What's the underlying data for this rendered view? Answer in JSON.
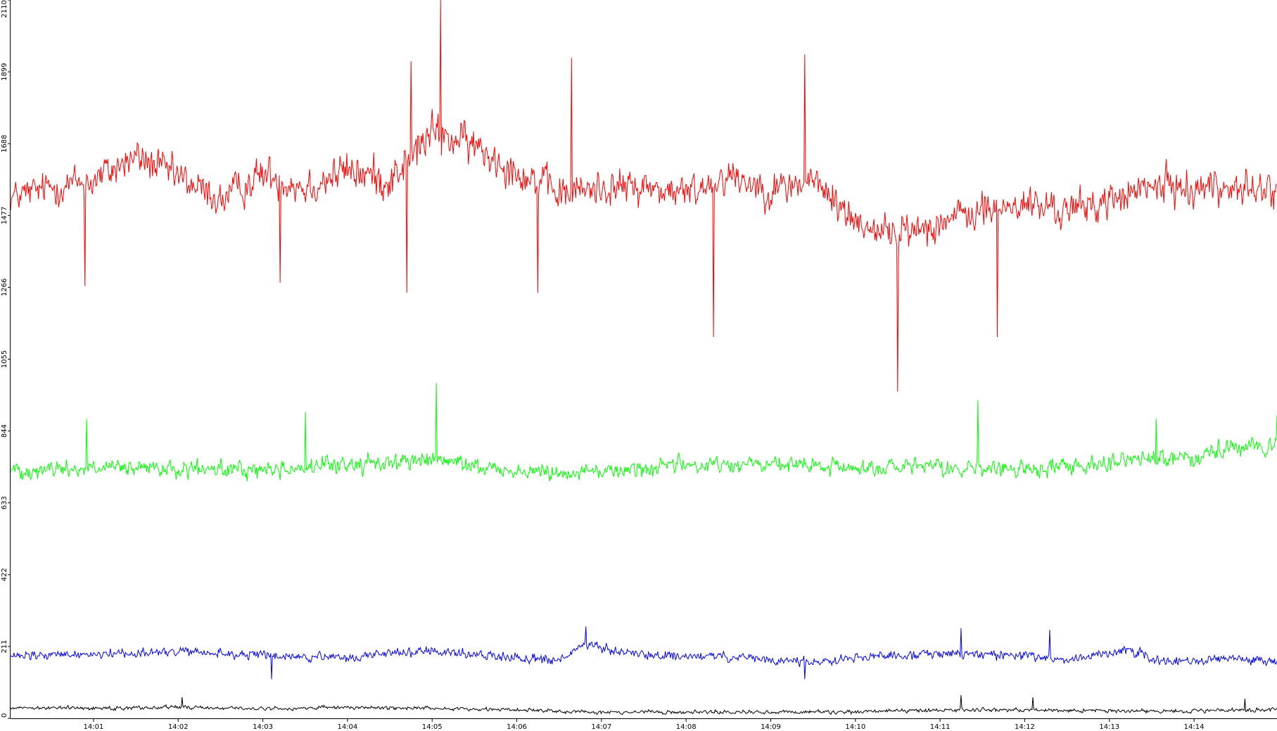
{
  "chart_data": {
    "type": "line",
    "title": "",
    "xlabel": "",
    "ylabel": "",
    "ylim": [
      0,
      2110
    ],
    "y_ticks": [
      "0",
      "211",
      "422",
      "633",
      "844",
      "1055",
      "1266",
      "1477",
      "1688",
      "1899",
      "2110"
    ],
    "x_tick_labels": [
      "14:01",
      "14:02",
      "14:03",
      "14:04",
      "14:05",
      "14:06",
      "14:07",
      "14:08",
      "14:09",
      "14:10",
      "14:11",
      "14:12",
      "14:13",
      "14:14"
    ],
    "x_range_minutes": [
      0.02,
      14.98
    ],
    "samples_per_series": 1500,
    "grid": false,
    "legend": "none",
    "series": [
      {
        "color": "#ff0000",
        "envelope": [
          {
            "t": 0.02,
            "mean": 1530,
            "spread": 95
          },
          {
            "t": 0.5,
            "mean": 1560,
            "spread": 110
          },
          {
            "t": 1.0,
            "mean": 1580,
            "spread": 115
          },
          {
            "t": 1.5,
            "mean": 1650,
            "spread": 120
          },
          {
            "t": 2.0,
            "mean": 1590,
            "spread": 115
          },
          {
            "t": 2.5,
            "mean": 1520,
            "spread": 110
          },
          {
            "t": 3.0,
            "mean": 1600,
            "spread": 120
          },
          {
            "t": 3.5,
            "mean": 1560,
            "spread": 120
          },
          {
            "t": 4.0,
            "mean": 1610,
            "spread": 125
          },
          {
            "t": 4.5,
            "mean": 1580,
            "spread": 130
          },
          {
            "t": 5.0,
            "mean": 1720,
            "spread": 130
          },
          {
            "t": 5.5,
            "mean": 1680,
            "spread": 120
          },
          {
            "t": 6.0,
            "mean": 1610,
            "spread": 115
          },
          {
            "t": 6.5,
            "mean": 1540,
            "spread": 115
          },
          {
            "t": 7.0,
            "mean": 1560,
            "spread": 110
          },
          {
            "t": 7.5,
            "mean": 1560,
            "spread": 110
          },
          {
            "t": 8.0,
            "mean": 1540,
            "spread": 110
          },
          {
            "t": 8.5,
            "mean": 1600,
            "spread": 110
          },
          {
            "t": 9.0,
            "mean": 1550,
            "spread": 110
          },
          {
            "t": 9.5,
            "mean": 1580,
            "spread": 115
          },
          {
            "t": 10.0,
            "mean": 1460,
            "spread": 110
          },
          {
            "t": 10.5,
            "mean": 1420,
            "spread": 115
          },
          {
            "t": 11.0,
            "mean": 1460,
            "spread": 110
          },
          {
            "t": 11.5,
            "mean": 1490,
            "spread": 110
          },
          {
            "t": 12.0,
            "mean": 1510,
            "spread": 110
          },
          {
            "t": 12.5,
            "mean": 1490,
            "spread": 110
          },
          {
            "t": 13.0,
            "mean": 1520,
            "spread": 110
          },
          {
            "t": 13.5,
            "mean": 1560,
            "spread": 115
          },
          {
            "t": 14.0,
            "mean": 1560,
            "spread": 115
          },
          {
            "t": 14.5,
            "mean": 1560,
            "spread": 115
          },
          {
            "t": 14.98,
            "mean": 1540,
            "spread": 110
          }
        ],
        "spikes": [
          {
            "t": 5.1,
            "value": 2110
          },
          {
            "t": 9.4,
            "value": 1950
          },
          {
            "t": 4.75,
            "value": 1930
          },
          {
            "t": 6.65,
            "value": 1940
          },
          {
            "t": 10.5,
            "value": 960
          },
          {
            "t": 8.32,
            "value": 1120
          },
          {
            "t": 11.68,
            "value": 1120
          },
          {
            "t": 0.9,
            "value": 1270
          },
          {
            "t": 6.25,
            "value": 1250
          },
          {
            "t": 4.7,
            "value": 1250
          },
          {
            "t": 3.2,
            "value": 1280
          }
        ]
      },
      {
        "color": "#00ff00",
        "envelope": [
          {
            "t": 0.02,
            "mean": 730,
            "spread": 55
          },
          {
            "t": 1.0,
            "mean": 735,
            "spread": 55
          },
          {
            "t": 2.0,
            "mean": 730,
            "spread": 55
          },
          {
            "t": 3.0,
            "mean": 730,
            "spread": 55
          },
          {
            "t": 4.0,
            "mean": 745,
            "spread": 55
          },
          {
            "t": 5.0,
            "mean": 760,
            "spread": 55
          },
          {
            "t": 6.0,
            "mean": 725,
            "spread": 50
          },
          {
            "t": 7.0,
            "mean": 725,
            "spread": 50
          },
          {
            "t": 8.0,
            "mean": 745,
            "spread": 55
          },
          {
            "t": 9.0,
            "mean": 745,
            "spread": 55
          },
          {
            "t": 10.0,
            "mean": 735,
            "spread": 55
          },
          {
            "t": 11.0,
            "mean": 735,
            "spread": 55
          },
          {
            "t": 12.0,
            "mean": 730,
            "spread": 55
          },
          {
            "t": 13.0,
            "mean": 755,
            "spread": 55
          },
          {
            "t": 14.0,
            "mean": 770,
            "spread": 55
          },
          {
            "t": 14.98,
            "mean": 810,
            "spread": 55
          }
        ],
        "spikes": [
          {
            "t": 5.05,
            "value": 985
          },
          {
            "t": 11.45,
            "value": 935
          },
          {
            "t": 0.92,
            "value": 880
          },
          {
            "t": 3.5,
            "value": 900
          },
          {
            "t": 13.55,
            "value": 880
          },
          {
            "t": 14.98,
            "value": 890
          }
        ]
      },
      {
        "color": "#0000ff",
        "envelope": [
          {
            "t": 0.02,
            "mean": 180,
            "spread": 30
          },
          {
            "t": 1.0,
            "mean": 190,
            "spread": 30
          },
          {
            "t": 2.0,
            "mean": 195,
            "spread": 30
          },
          {
            "t": 3.0,
            "mean": 185,
            "spread": 30
          },
          {
            "t": 4.0,
            "mean": 175,
            "spread": 30
          },
          {
            "t": 4.5,
            "mean": 195,
            "spread": 30
          },
          {
            "t": 5.0,
            "mean": 195,
            "spread": 30
          },
          {
            "t": 6.0,
            "mean": 180,
            "spread": 30
          },
          {
            "t": 6.5,
            "mean": 170,
            "spread": 30
          },
          {
            "t": 6.8,
            "mean": 215,
            "spread": 30
          },
          {
            "t": 7.5,
            "mean": 185,
            "spread": 30
          },
          {
            "t": 8.5,
            "mean": 180,
            "spread": 30
          },
          {
            "t": 9.0,
            "mean": 170,
            "spread": 30
          },
          {
            "t": 9.5,
            "mean": 165,
            "spread": 30
          },
          {
            "t": 10.0,
            "mean": 180,
            "spread": 30
          },
          {
            "t": 11.0,
            "mean": 190,
            "spread": 30
          },
          {
            "t": 12.0,
            "mean": 185,
            "spread": 30
          },
          {
            "t": 12.5,
            "mean": 170,
            "spread": 30
          },
          {
            "t": 13.2,
            "mean": 205,
            "spread": 30
          },
          {
            "t": 13.6,
            "mean": 165,
            "spread": 30
          },
          {
            "t": 14.5,
            "mean": 175,
            "spread": 30
          },
          {
            "t": 14.98,
            "mean": 165,
            "spread": 30
          }
        ],
        "spikes": [
          {
            "t": 6.82,
            "value": 270
          },
          {
            "t": 11.25,
            "value": 265
          },
          {
            "t": 12.3,
            "value": 260
          },
          {
            "t": 9.4,
            "value": 115
          },
          {
            "t": 3.1,
            "value": 115
          }
        ]
      },
      {
        "color": "#000000",
        "envelope": [
          {
            "t": 0.02,
            "mean": 32,
            "spread": 12
          },
          {
            "t": 1.0,
            "mean": 30,
            "spread": 12
          },
          {
            "t": 2.0,
            "mean": 33,
            "spread": 12
          },
          {
            "t": 3.0,
            "mean": 28,
            "spread": 12
          },
          {
            "t": 4.0,
            "mean": 32,
            "spread": 12
          },
          {
            "t": 5.0,
            "mean": 30,
            "spread": 12
          },
          {
            "t": 6.0,
            "mean": 25,
            "spread": 12
          },
          {
            "t": 7.0,
            "mean": 18,
            "spread": 12
          },
          {
            "t": 8.0,
            "mean": 18,
            "spread": 12
          },
          {
            "t": 9.0,
            "mean": 18,
            "spread": 12
          },
          {
            "t": 10.0,
            "mean": 20,
            "spread": 12
          },
          {
            "t": 11.0,
            "mean": 25,
            "spread": 12
          },
          {
            "t": 12.0,
            "mean": 25,
            "spread": 12
          },
          {
            "t": 13.0,
            "mean": 22,
            "spread": 12
          },
          {
            "t": 14.0,
            "mean": 22,
            "spread": 12
          },
          {
            "t": 14.98,
            "mean": 25,
            "spread": 12
          }
        ],
        "spikes": [
          {
            "t": 11.25,
            "value": 68
          },
          {
            "t": 12.1,
            "value": 62
          },
          {
            "t": 2.05,
            "value": 62
          },
          {
            "t": 14.6,
            "value": 58
          }
        ]
      }
    ]
  }
}
